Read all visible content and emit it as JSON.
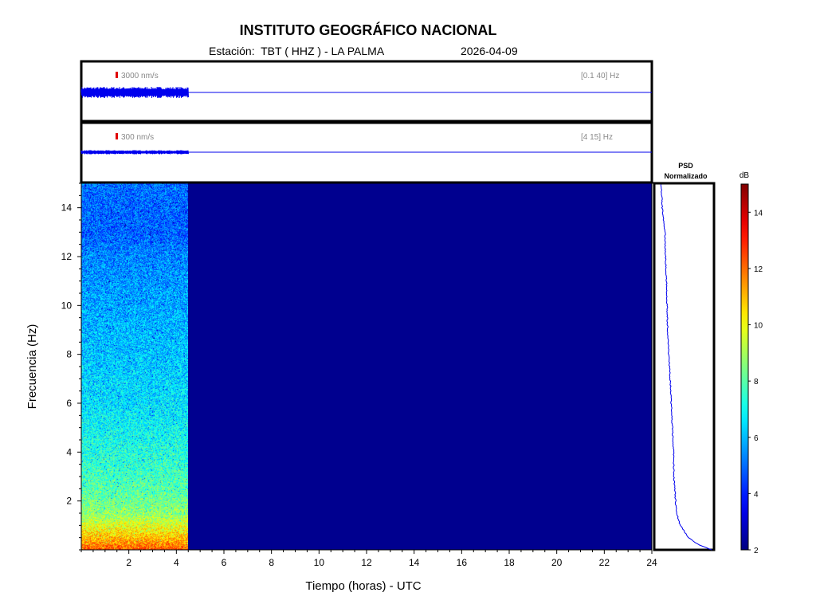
{
  "header": {
    "title": "INSTITUTO GEOGRÁFICO NACIONAL",
    "station_label": "Estación:  TBT ( HHZ ) - LA PALMA",
    "date": "2026-04-09"
  },
  "chart_data": [
    {
      "type": "line",
      "name": "seismogram-broadband",
      "scale_label": "3000 nm/s",
      "filter_label": "[0.1 40] Hz",
      "x": [
        0,
        4.5,
        24
      ],
      "data_end_hours": 4.5,
      "xlim": [
        0,
        24
      ],
      "note_colors": {
        "trace": "#0000ee",
        "scale_bar": "#e00000"
      }
    },
    {
      "type": "line",
      "name": "seismogram-filtered",
      "scale_label": "300 nm/s",
      "filter_label": "[4 15] Hz",
      "data_end_hours": 4.5,
      "xlim": [
        0,
        24
      ]
    },
    {
      "type": "heatmap",
      "name": "spectrogram",
      "xlabel": "Tiempo (horas) - UTC",
      "ylabel": "Frecuencia  (Hz)",
      "xlim": [
        0,
        24
      ],
      "ylim": [
        0,
        15
      ],
      "x_ticks": [
        "2",
        "4",
        "6",
        "8",
        "10",
        "12",
        "14",
        "16",
        "18",
        "20",
        "22",
        "24"
      ],
      "y_ticks": [
        "2",
        "4",
        "6",
        "8",
        "10",
        "12",
        "14"
      ],
      "data_end_hours": 4.5,
      "db_profile": {
        "freq_hz": [
          0,
          0.3,
          0.8,
          1.5,
          2.5,
          4,
          6,
          8,
          10,
          12,
          13,
          15
        ],
        "db": [
          12.5,
          11.5,
          10.3,
          8.7,
          8.0,
          7.3,
          6.6,
          6.2,
          5.8,
          5.4,
          4.9,
          5.1
        ]
      },
      "empty_db": 2
    },
    {
      "type": "line",
      "name": "psd-normalized",
      "title": "PSD\nNormalizado",
      "title_line1": "PSD",
      "title_line2": "Normalizado",
      "freq_hz": [
        0,
        0.2,
        0.5,
        1,
        1.5,
        2,
        3,
        4,
        5,
        6,
        7,
        8,
        9,
        10,
        11,
        12,
        13,
        14,
        15
      ],
      "value": [
        0.98,
        0.75,
        0.55,
        0.4,
        0.33,
        0.31,
        0.28,
        0.27,
        0.25,
        0.23,
        0.21,
        0.18,
        0.16,
        0.15,
        0.14,
        0.12,
        0.11,
        0.06,
        0.04
      ],
      "xlim": [
        0,
        1
      ],
      "ylim": [
        0,
        15
      ]
    },
    {
      "type": "heatmap",
      "name": "colorbar",
      "unit_label": "dB",
      "range": [
        2,
        15
      ],
      "ticks": [
        "2",
        "4",
        "6",
        "8",
        "10",
        "12",
        "14"
      ],
      "colormap": "jet"
    }
  ],
  "colors": {
    "empty_region": "#00008f",
    "trace": "#0000ee"
  }
}
